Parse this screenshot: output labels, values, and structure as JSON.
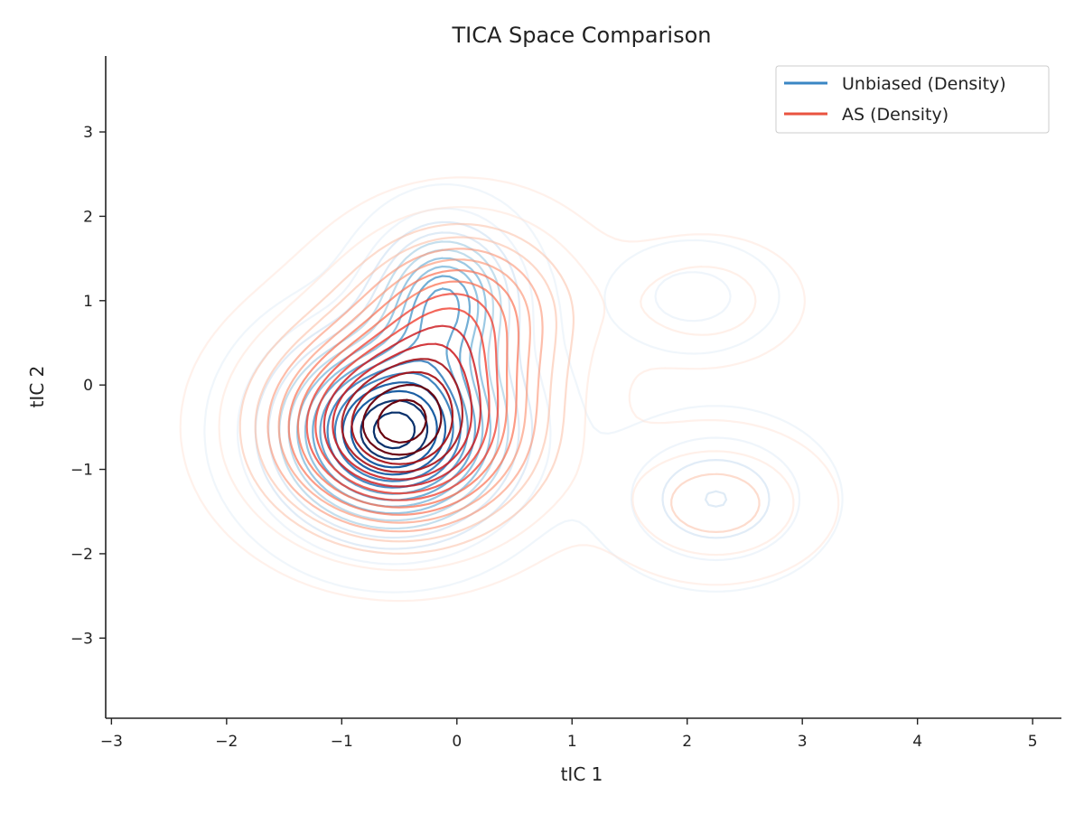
{
  "chart_data": {
    "type": "contour",
    "title": "TICA Space Comparison",
    "xlabel": "tIC 1",
    "ylabel": "tIC 2",
    "xlim": [
      -3.05,
      5.25
    ],
    "ylim": [
      -3.95,
      3.9
    ],
    "xticks": [
      -3,
      -2,
      -1,
      0,
      1,
      2,
      3,
      4,
      5
    ],
    "yticks": [
      -3,
      -2,
      -1,
      0,
      1,
      2,
      3
    ],
    "grid": false,
    "legend_position": "top-right",
    "series": [
      {
        "name": "Unbiased (Density)",
        "color": "#3a86c4",
        "palette": [
          "#deebf7",
          "#c6dbef",
          "#9ecae1",
          "#6baed6",
          "#4292c6",
          "#2171b5",
          "#08519c",
          "#08306b"
        ],
        "components": [
          {
            "x": -0.55,
            "y": -0.55,
            "sx": 0.62,
            "sy": 0.72,
            "w": 1.0
          },
          {
            "x": -0.1,
            "y": 1.05,
            "sx": 0.38,
            "sy": 0.55,
            "w": 0.55
          },
          {
            "x": 2.25,
            "y": -1.35,
            "sx": 0.55,
            "sy": 0.55,
            "w": 0.22
          },
          {
            "x": 2.05,
            "y": 1.05,
            "sx": 0.45,
            "sy": 0.4,
            "w": 0.12
          }
        ]
      },
      {
        "name": "AS (Density)",
        "color": "#e9533f",
        "palette": [
          "#fee0d2",
          "#fcbba1",
          "#fc9272",
          "#fb6a4a",
          "#ef3b2c",
          "#cb181d",
          "#a50f15",
          "#67000d"
        ],
        "components": [
          {
            "x": -0.5,
            "y": -0.5,
            "sx": 0.72,
            "sy": 0.78,
            "w": 1.0
          },
          {
            "x": 0.05,
            "y": 0.95,
            "sx": 0.6,
            "sy": 0.65,
            "w": 0.45
          },
          {
            "x": 2.25,
            "y": -1.4,
            "sx": 0.55,
            "sy": 0.5,
            "w": 0.2
          },
          {
            "x": 2.15,
            "y": 1.0,
            "sx": 0.5,
            "sy": 0.45,
            "w": 0.14
          }
        ]
      }
    ]
  }
}
